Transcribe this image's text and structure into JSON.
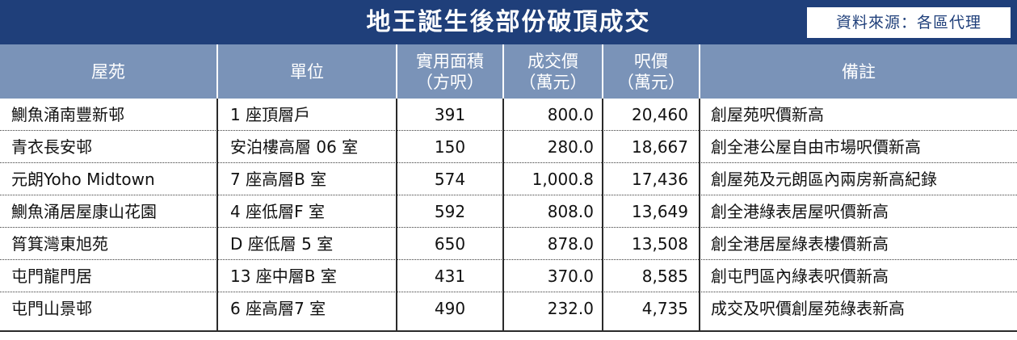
{
  "title": "地王誕生後部份破頂成交",
  "source": "資料來源：各區代理",
  "headers": {
    "estate": [
      "屋苑"
    ],
    "unit": [
      "單位"
    ],
    "area": [
      "實用面積",
      "（方呎）"
    ],
    "price": [
      "成交價",
      "（萬元）"
    ],
    "psf": [
      "呎價",
      "（萬元）"
    ],
    "remark": [
      "備註"
    ]
  },
  "rows": [
    {
      "estate": "鰂魚涌南豐新邨",
      "unit": "1 座頂層戶",
      "area": "391",
      "price": "800.0",
      "psf": "20,460",
      "remark": "創屋苑呎價新高"
    },
    {
      "estate": "青衣長安邨",
      "unit": "安泊樓高層 06 室",
      "area": "150",
      "price": "280.0",
      "psf": "18,667",
      "remark": "創全港公屋自由市場呎價新高"
    },
    {
      "estate": "元朗Yoho Midtown",
      "unit": "7 座高層B 室",
      "area": "574",
      "price": "1,000.8",
      "psf": "17,436",
      "remark": "創屋苑及元朗區內兩房新高紀錄"
    },
    {
      "estate": "鰂魚涌居屋康山花園",
      "unit": "4 座低層F 室",
      "area": "592",
      "price": "808.0",
      "psf": "13,649",
      "remark": "創全港綠表居屋呎價新高"
    },
    {
      "estate": "筲箕灣東旭苑",
      "unit": "D 座低層 5 室",
      "area": "650",
      "price": "878.0",
      "psf": "13,508",
      "remark": "創全港居屋綠表樓價新高"
    },
    {
      "estate": "屯門龍門居",
      "unit": "13 座中層B 室",
      "area": "431",
      "price": "370.0",
      "psf": "8,585",
      "remark": "創屯門區內綠表呎價新高"
    },
    {
      "estate": "屯門山景邨",
      "unit": "6 座高層7 室",
      "area": "490",
      "price": "232.0",
      "psf": "4,735",
      "remark": "成交及呎價創屋苑綠表新高"
    }
  ],
  "colors": {
    "title_bg": "#1f3f7a",
    "header_bg": "#7a93b8"
  }
}
